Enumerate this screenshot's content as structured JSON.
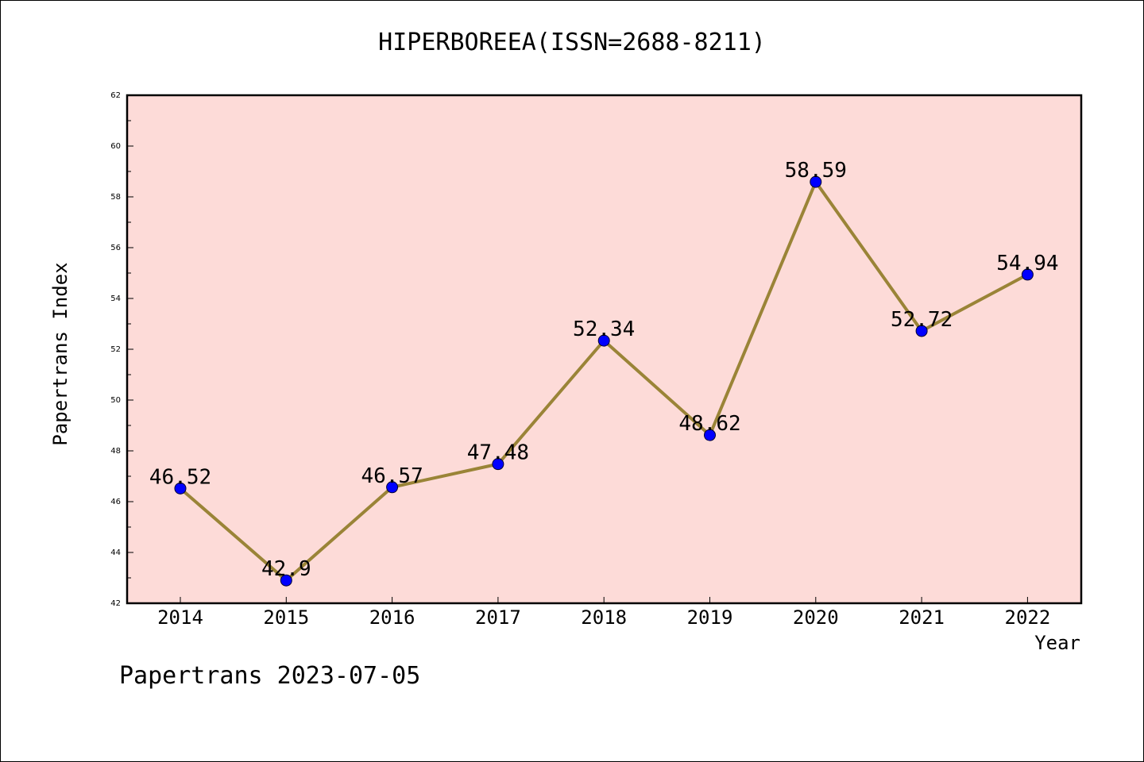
{
  "chart_data": {
    "type": "line",
    "title": "HIPERBOREEA(ISSN=2688-8211)",
    "xlabel": "Year",
    "ylabel": "Papertrans Index",
    "categories": [
      "2014",
      "2015",
      "2016",
      "2017",
      "2018",
      "2019",
      "2020",
      "2021",
      "2022"
    ],
    "values": [
      46.52,
      42.9,
      46.57,
      47.48,
      52.34,
      48.62,
      58.59,
      52.72,
      54.94
    ],
    "data_labels": [
      "46.52",
      "42.9",
      "46.57",
      "47.48",
      "52.34",
      "48.62",
      "58.59",
      "52.72",
      "54.94"
    ],
    "ylim": [
      42,
      62
    ],
    "yticks": [
      42,
      44,
      46,
      48,
      50,
      52,
      54,
      56,
      58,
      60,
      62
    ],
    "grid": false,
    "colors": {
      "plot_background": "#fddbd8",
      "line": "#9a8437",
      "marker": "#0000ff"
    }
  },
  "footer": "Papertrans 2023-07-05"
}
